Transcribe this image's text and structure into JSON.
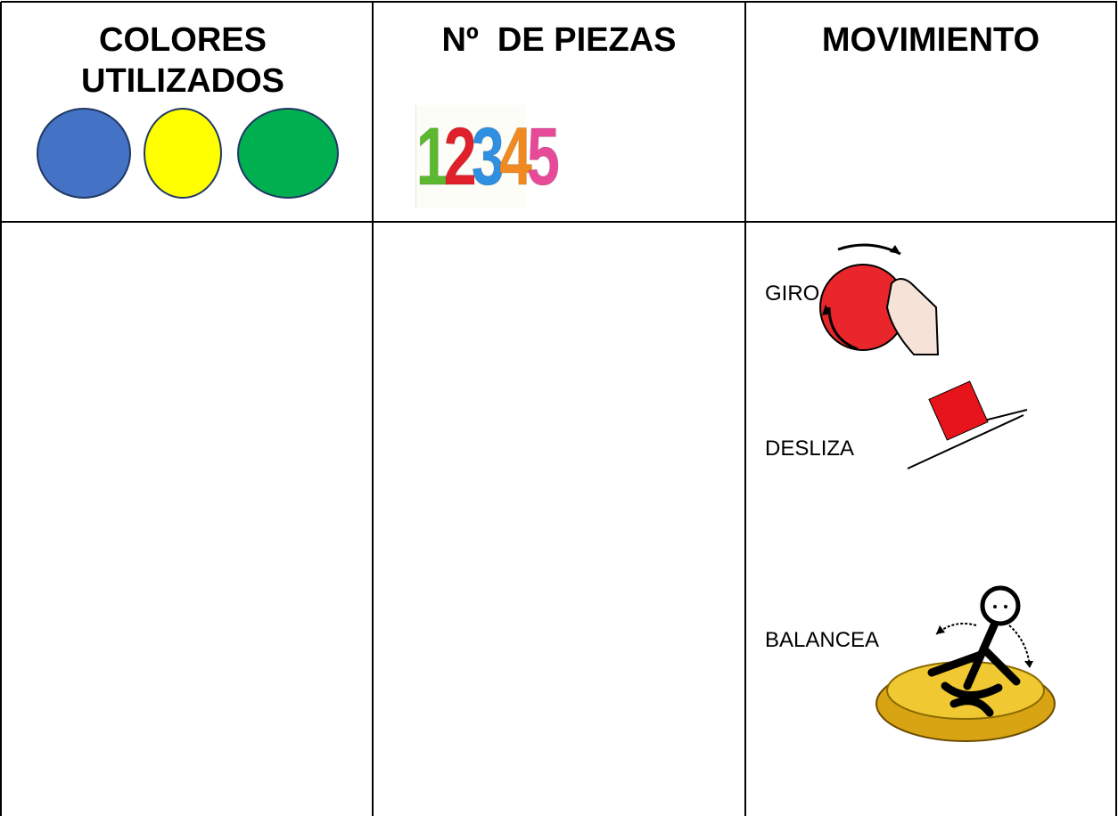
{
  "table": {
    "headers": [
      "COLORES UTILIZADOS",
      "Nº  DE PIEZAS",
      "MOVIMIENTO"
    ],
    "digits": [
      "1",
      "2",
      "3",
      "4",
      "5"
    ],
    "movements": [
      "GIRO",
      "DESLIZA",
      "BALANCEA"
    ]
  }
}
